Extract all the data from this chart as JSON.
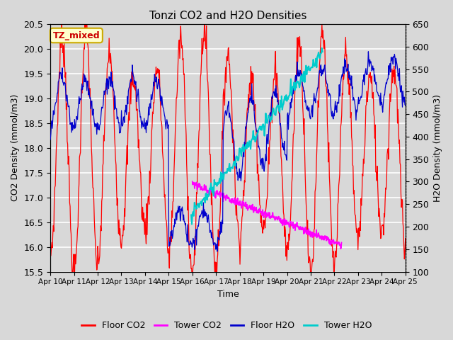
{
  "title": "Tonzi CO2 and H2O Densities",
  "xlabel": "Time",
  "ylabel_left": "CO2 Density (mmol/m3)",
  "ylabel_right": "H2O Density (mmol/m3)",
  "ylim_left": [
    15.5,
    20.5
  ],
  "ylim_right": [
    100,
    650
  ],
  "annotation_text": "TZ_mixed",
  "annotation_color": "#cc0000",
  "annotation_bg": "#ffffcc",
  "annotation_border": "#ccaa00",
  "background_color": "#d8d8d8",
  "colors": {
    "floor_co2": "#ff0000",
    "tower_co2": "#ff00ff",
    "floor_h2o": "#0000cc",
    "tower_h2o": "#00cccc"
  },
  "legend_labels": [
    "Floor CO2",
    "Tower CO2",
    "Floor H2O",
    "Tower H2O"
  ],
  "x_ticks": [
    10,
    11,
    12,
    13,
    14,
    15,
    16,
    17,
    18,
    19,
    20,
    21,
    22,
    23,
    24,
    25
  ],
  "x_tick_labels": [
    "Apr 10",
    "Apr 11",
    "Apr 12",
    "Apr 13",
    "Apr 14",
    "Apr 15",
    "Apr 16",
    "Apr 17",
    "Apr 18",
    "Apr 19",
    "Apr 20",
    "Apr 21",
    "Apr 22",
    "Apr 23",
    "Apr 24",
    "Apr 25"
  ],
  "yticks_left": [
    15.5,
    16.0,
    16.5,
    17.0,
    17.5,
    18.0,
    18.5,
    19.0,
    19.5,
    20.0,
    20.5
  ],
  "yticks_right": [
    100,
    150,
    200,
    250,
    300,
    350,
    400,
    450,
    500,
    550,
    600,
    650
  ]
}
